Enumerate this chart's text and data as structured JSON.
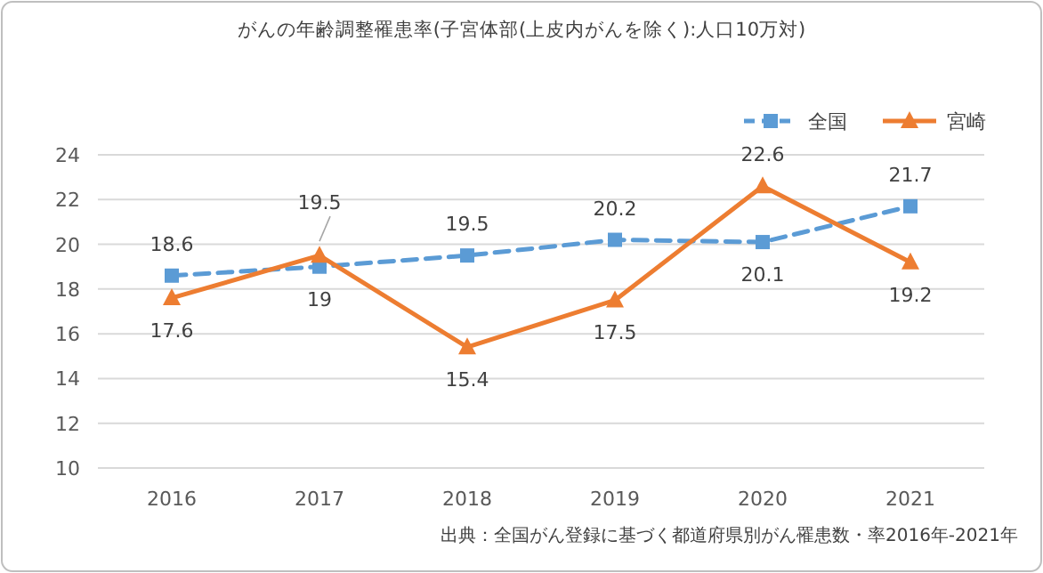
{
  "chart_data": {
    "type": "line",
    "title": "がんの年齢調整罹患率(子宮体部(上皮内がんを除く):人口10万対)",
    "categories": [
      "2016",
      "2017",
      "2018",
      "2019",
      "2020",
      "2021"
    ],
    "series": [
      {
        "name": "全国",
        "color": "#5b9bd5",
        "values": [
          18.6,
          19,
          19.5,
          20.2,
          20.1,
          21.7
        ],
        "marker": "square",
        "line_style": "dashed",
        "value_labels": [
          "18.6",
          "19",
          "19.5",
          "20.2",
          "20.1",
          "21.7"
        ]
      },
      {
        "name": "宮崎",
        "color": "#ed7d31",
        "values": [
          17.6,
          19.5,
          15.4,
          17.5,
          22.6,
          19.2
        ],
        "marker": "triangle",
        "line_style": "solid",
        "value_labels": [
          "17.6",
          "19.5",
          "15.4",
          "17.5",
          "22.6",
          "19.2"
        ]
      }
    ],
    "ylim": [
      10,
      24
    ],
    "yticks": [
      10,
      12,
      14,
      16,
      18,
      20,
      22,
      24
    ],
    "grid": "y",
    "legend": "top right",
    "annotations": [
      "出典：全国がん登録に基づく都道府県別がん罹患数・率2016年-2021年"
    ]
  }
}
